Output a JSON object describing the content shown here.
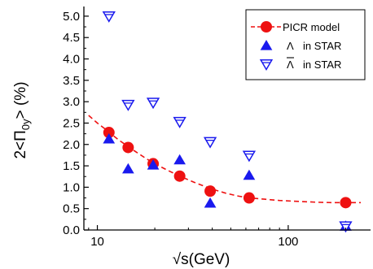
{
  "chart_data": {
    "type": "scatter",
    "xscale": "log",
    "xlim": [
      8.5,
      270
    ],
    "ylim": [
      0,
      5.15
    ],
    "xlabel": "√s(GeV)",
    "ylabel_parts": {
      "pre": "2<Π",
      "sub": "0y",
      "post": "> (%)"
    },
    "xticks": [
      {
        "value": 10,
        "label": "10"
      },
      {
        "value": 100,
        "label": "100"
      }
    ],
    "yticks": [
      {
        "value": 0.0,
        "label": "0.0"
      },
      {
        "value": 0.5,
        "label": "0.5"
      },
      {
        "value": 1.0,
        "label": "1.0"
      },
      {
        "value": 1.5,
        "label": "1.5"
      },
      {
        "value": 2.0,
        "label": "2.0"
      },
      {
        "value": 2.5,
        "label": "2.5"
      },
      {
        "value": 3.0,
        "label": "3.0"
      },
      {
        "value": 3.5,
        "label": "3.5"
      },
      {
        "value": 4.0,
        "label": "4.0"
      },
      {
        "value": 4.5,
        "label": "4.5"
      },
      {
        "value": 5.0,
        "label": "5.0"
      }
    ],
    "grid": false,
    "legend_position": "top-right",
    "series": [
      {
        "name": "PICR model",
        "marker": "circle",
        "color": "#ee1111",
        "x": [
          11.5,
          14.5,
          19.6,
          27,
          39,
          62.4,
          200
        ],
        "y": [
          2.28,
          1.93,
          1.55,
          1.26,
          0.91,
          0.75,
          0.64
        ]
      },
      {
        "name": "Λ in STAR",
        "marker": "triangle-up",
        "color": "#1a1aee",
        "x": [
          11.5,
          14.5,
          19.6,
          27,
          39,
          62.4,
          200
        ],
        "y": [
          2.13,
          1.43,
          1.52,
          1.64,
          0.63,
          1.28,
          0.09
        ]
      },
      {
        "name": "Λ̄ in STAR",
        "marker": "triangle-down-open",
        "color": "#1a1aee",
        "x": [
          11.5,
          14.5,
          19.6,
          27,
          39,
          62.4,
          200
        ],
        "y": [
          5.0,
          2.93,
          2.98,
          2.53,
          2.06,
          1.74,
          0.09
        ]
      }
    ],
    "fit_curve": {
      "style": "dashed",
      "color": "#ee1111",
      "x": [
        9,
        10,
        11,
        12,
        13,
        14.5,
        16,
        18,
        20,
        23,
        27,
        32,
        39,
        47,
        55,
        62.4,
        75,
        90,
        110,
        140,
        170,
        200,
        240
      ],
      "y": [
        2.68,
        2.5,
        2.36,
        2.22,
        2.1,
        1.95,
        1.82,
        1.67,
        1.55,
        1.41,
        1.26,
        1.12,
        0.97,
        0.86,
        0.79,
        0.75,
        0.72,
        0.69,
        0.67,
        0.65,
        0.64,
        0.64,
        0.64
      ]
    }
  },
  "legend": {
    "items": [
      {
        "key": "picr",
        "label": "PICR model"
      },
      {
        "key": "lambda",
        "symbol": "Λ",
        "label": "in STAR"
      },
      {
        "key": "antilambda",
        "symbol": "Λ",
        "label": "in STAR"
      }
    ]
  }
}
